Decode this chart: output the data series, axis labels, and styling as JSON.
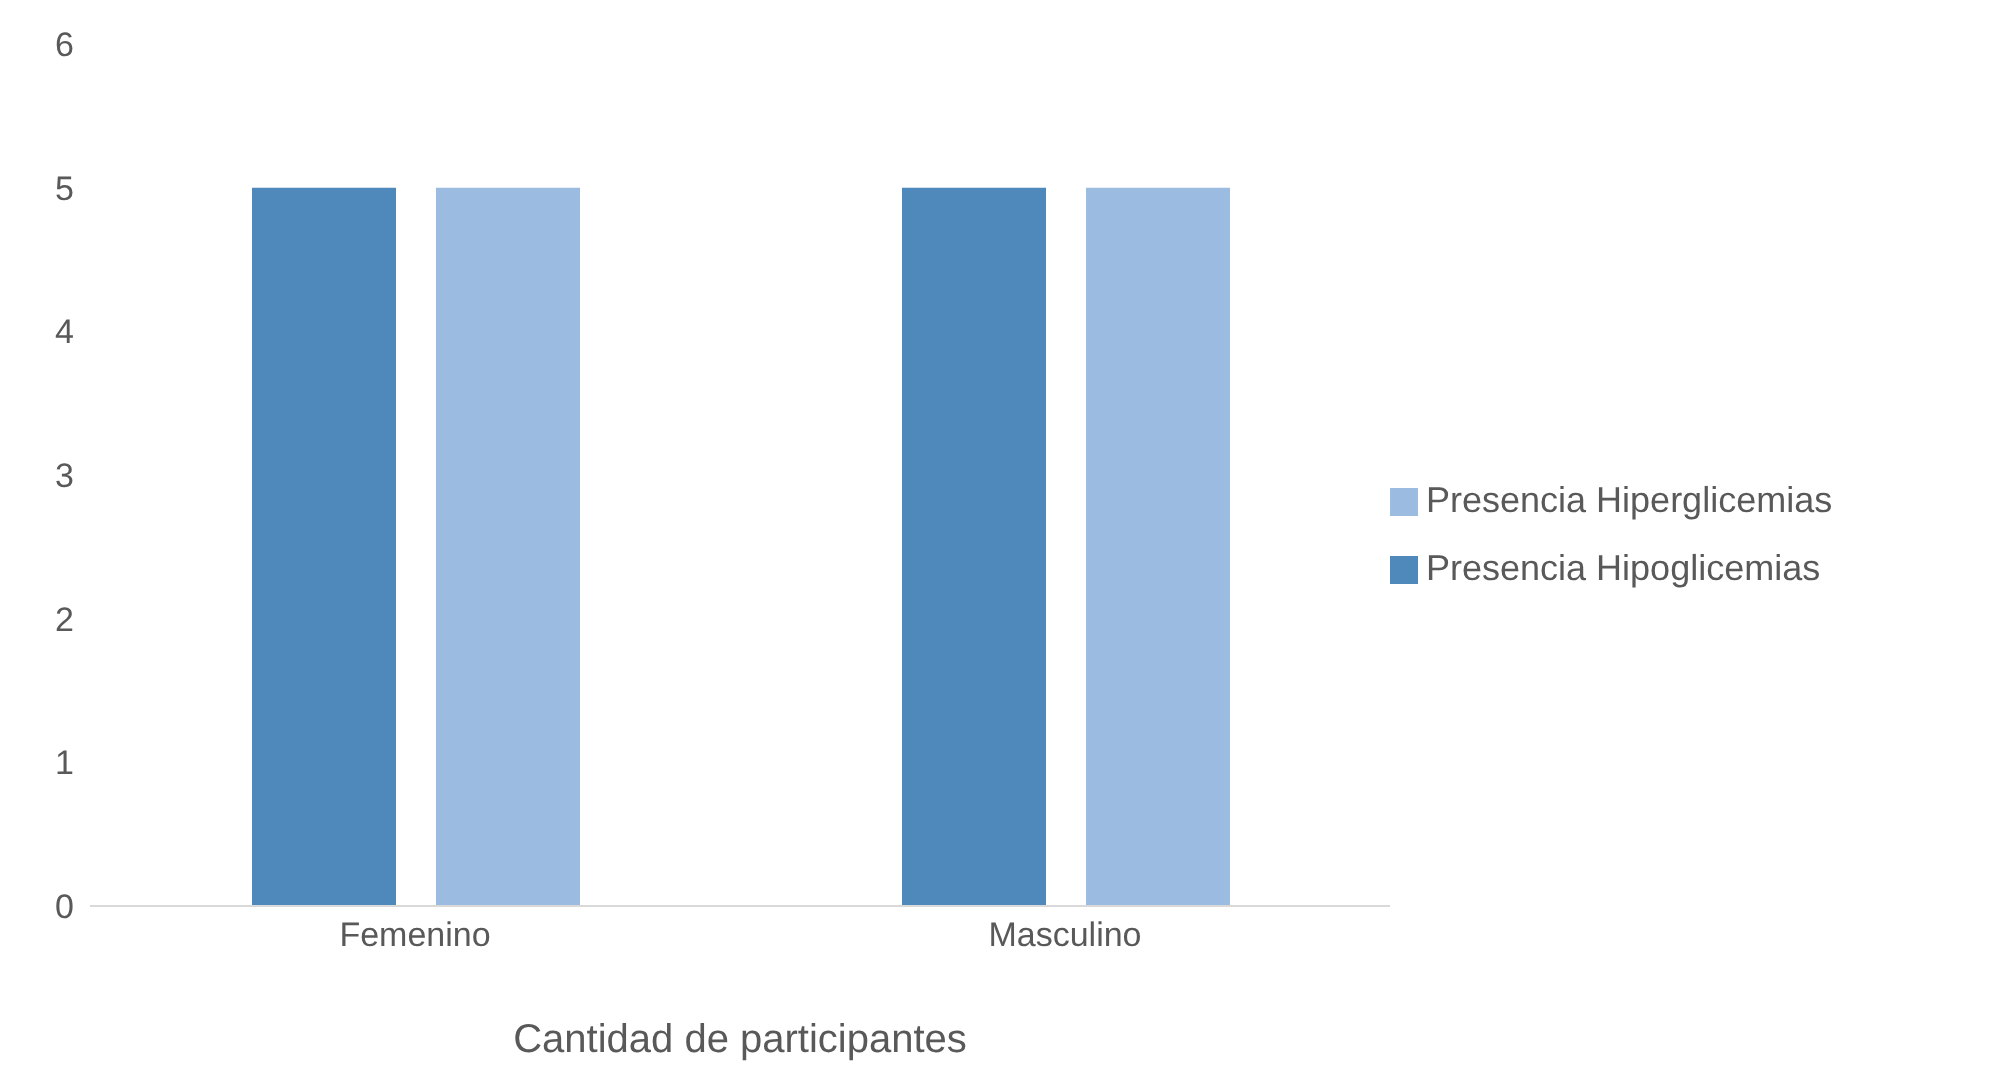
{
  "chart_data": {
    "type": "bar",
    "xlabel": "Cantidad de participantes",
    "categories": [
      "Femenino",
      "Masculino"
    ],
    "series": [
      {
        "name": "Presencia Hipoglicemias",
        "color": "#4f88bb",
        "values": [
          5,
          5
        ]
      },
      {
        "name": "Presencia Hiperglicemias",
        "color": "#9bbbe0",
        "values": [
          5,
          5
        ]
      }
    ],
    "ylim": [
      0,
      6
    ],
    "yticks": [
      0,
      1,
      2,
      3,
      4,
      5,
      6
    ],
    "grid": false,
    "legend": "right"
  }
}
